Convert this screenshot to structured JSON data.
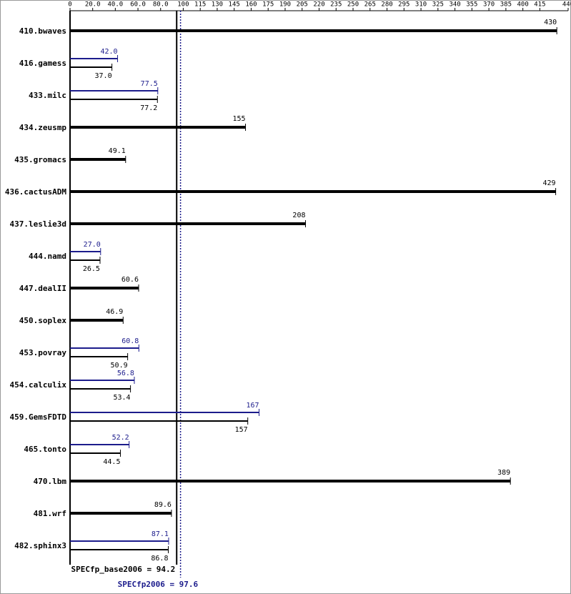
{
  "chart_data": {
    "type": "bar",
    "orientation": "horizontal",
    "categories": [
      "410.bwaves",
      "416.gamess",
      "433.milc",
      "434.zeusmp",
      "435.gromacs",
      "436.cactusADM",
      "437.leslie3d",
      "444.namd",
      "447.dealII",
      "450.soplex",
      "453.povray",
      "454.calculix",
      "459.GemsFDTD",
      "465.tonto",
      "470.lbm",
      "481.wrf",
      "482.sphinx3"
    ],
    "series": [
      {
        "name": "base",
        "color": "#000000",
        "values": [
          430,
          37.0,
          77.2,
          155,
          49.1,
          429,
          208,
          26.5,
          60.6,
          46.9,
          50.9,
          53.4,
          157,
          44.5,
          389,
          89.6,
          86.8
        ],
        "value_labels": [
          "430",
          "37.0",
          "77.2",
          "155",
          "49.1",
          "429",
          "208",
          "26.5",
          "60.6",
          "46.9",
          "50.9",
          "53.4",
          "157",
          "44.5",
          "389",
          "89.6",
          "86.8"
        ]
      },
      {
        "name": "peak",
        "color": "#1c1c8c",
        "values": [
          null,
          42.0,
          77.5,
          null,
          null,
          null,
          null,
          27.0,
          null,
          null,
          60.8,
          56.8,
          167,
          52.2,
          null,
          null,
          87.1
        ],
        "value_labels": [
          null,
          "42.0",
          "77.5",
          null,
          null,
          null,
          null,
          "27.0",
          null,
          null,
          "60.8",
          "56.8",
          "167",
          "52.2",
          null,
          null,
          "87.1"
        ]
      }
    ],
    "xlim": [
      0,
      440
    ],
    "xticks": [
      0,
      {
        "value": 20,
        "label": "20.0"
      },
      {
        "value": 40,
        "label": "40.0"
      },
      {
        "value": 60,
        "label": "60.0"
      },
      {
        "value": 80,
        "label": "80.0"
      },
      100,
      115,
      130,
      145,
      160,
      175,
      190,
      205,
      220,
      235,
      250,
      265,
      280,
      295,
      310,
      325,
      340,
      355,
      370,
      385,
      400,
      415,
      440
    ],
    "reference_lines": [
      {
        "label": "SPECfp_base2006 = 94.2",
        "value": 94.2,
        "color": "#000000",
        "style": "solid"
      },
      {
        "label": "SPECfp2006 = 97.6",
        "value": 97.6,
        "color": "#1c1c8c",
        "style": "dotted"
      }
    ]
  }
}
